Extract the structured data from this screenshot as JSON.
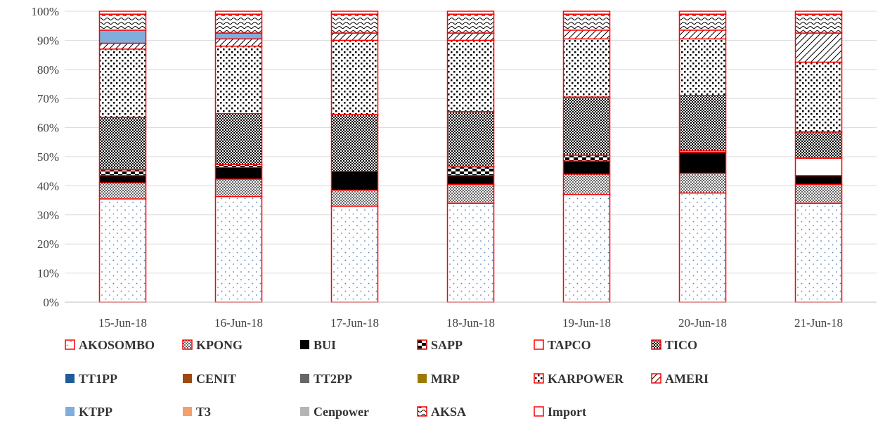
{
  "chart_data": {
    "type": "bar",
    "stacked": true,
    "percent": true,
    "categories": [
      "15-Jun-18",
      "16-Jun-18",
      "17-Jun-18",
      "18-Jun-18",
      "19-Jun-18",
      "20-Jun-18",
      "21-Jun-18"
    ],
    "ylim": [
      0,
      100
    ],
    "yticks": [
      "0%",
      "10%",
      "20%",
      "30%",
      "40%",
      "50%",
      "60%",
      "70%",
      "80%",
      "90%",
      "100%"
    ],
    "grid": true,
    "legend_position": "bottom",
    "title": "",
    "xlabel": "",
    "ylabel": "",
    "series": [
      {
        "name": "AKOSOMBO",
        "values": [
          35.5,
          36.3,
          33.0,
          34.0,
          37.0,
          37.5,
          34.0
        ],
        "color": "#4f81bd",
        "pattern": "dots-sparse"
      },
      {
        "name": "KPONG",
        "values": [
          5.5,
          6.0,
          5.5,
          6.5,
          7.0,
          6.8,
          6.5
        ],
        "color": "#000000",
        "pattern": "dots-dense"
      },
      {
        "name": "BUI",
        "values": [
          2.5,
          4.0,
          6.5,
          3.0,
          4.5,
          7.2,
          3.0
        ],
        "color": "#000000",
        "pattern": "solid"
      },
      {
        "name": "SAPP",
        "values": [
          2.0,
          1.0,
          0.0,
          3.0,
          2.0,
          0.0,
          0.0
        ],
        "color": "#000000",
        "pattern": "checker"
      },
      {
        "name": "TAPCO",
        "values": [
          0.0,
          0.0,
          0.0,
          0.0,
          0.0,
          0.5,
          6.0
        ],
        "color": "#ffffff",
        "pattern": "none"
      },
      {
        "name": "TICO",
        "values": [
          18.0,
          17.5,
          19.5,
          19.0,
          20.0,
          19.0,
          9.0
        ],
        "color": "#000000",
        "pattern": "checker-small"
      },
      {
        "name": "TT1PP",
        "values": [
          0,
          0,
          0,
          0,
          0,
          0,
          0
        ],
        "color": "#1f5c99",
        "pattern": "solid"
      },
      {
        "name": "CENIT",
        "values": [
          0,
          0,
          0,
          0,
          0,
          0,
          0
        ],
        "color": "#a0480f",
        "pattern": "solid"
      },
      {
        "name": "TT2PP",
        "values": [
          0,
          0,
          0,
          0,
          0,
          0,
          0
        ],
        "color": "#666666",
        "pattern": "solid"
      },
      {
        "name": "MRP",
        "values": [
          0,
          0,
          0,
          0,
          0,
          0,
          0
        ],
        "color": "#9c7a00",
        "pattern": "solid"
      },
      {
        "name": "KARPOWER",
        "values": [
          23.5,
          23.2,
          25.5,
          24.5,
          20.0,
          19.5,
          24.0
        ],
        "color": "#000000",
        "pattern": "dots-squares"
      },
      {
        "name": "AMERI",
        "values": [
          2.0,
          2.5,
          2.5,
          2.5,
          3.0,
          3.0,
          10.0
        ],
        "color": "#000000",
        "pattern": "diagonal"
      },
      {
        "name": "KTPP",
        "values": [
          4.5,
          2.0,
          0.0,
          0.0,
          0.0,
          0.0,
          0.0
        ],
        "color": "#80aedc",
        "pattern": "solid"
      },
      {
        "name": "T3",
        "values": [
          0,
          0,
          0,
          0,
          0,
          0,
          0
        ],
        "color": "#f4a06b",
        "pattern": "solid"
      },
      {
        "name": "Cenpower",
        "values": [
          0,
          0,
          0,
          0,
          0,
          0,
          0
        ],
        "color": "#b5b5b5",
        "pattern": "solid"
      },
      {
        "name": "AKSA",
        "values": [
          5.5,
          6.5,
          6.5,
          6.5,
          5.5,
          5.5,
          6.5
        ],
        "color": "#000000",
        "pattern": "wave"
      },
      {
        "name": "Import",
        "values": [
          1.0,
          1.0,
          1.0,
          1.0,
          1.0,
          1.0,
          1.0
        ],
        "color": "#ffffff",
        "pattern": "none"
      }
    ],
    "outline_color": "#ff0000"
  }
}
